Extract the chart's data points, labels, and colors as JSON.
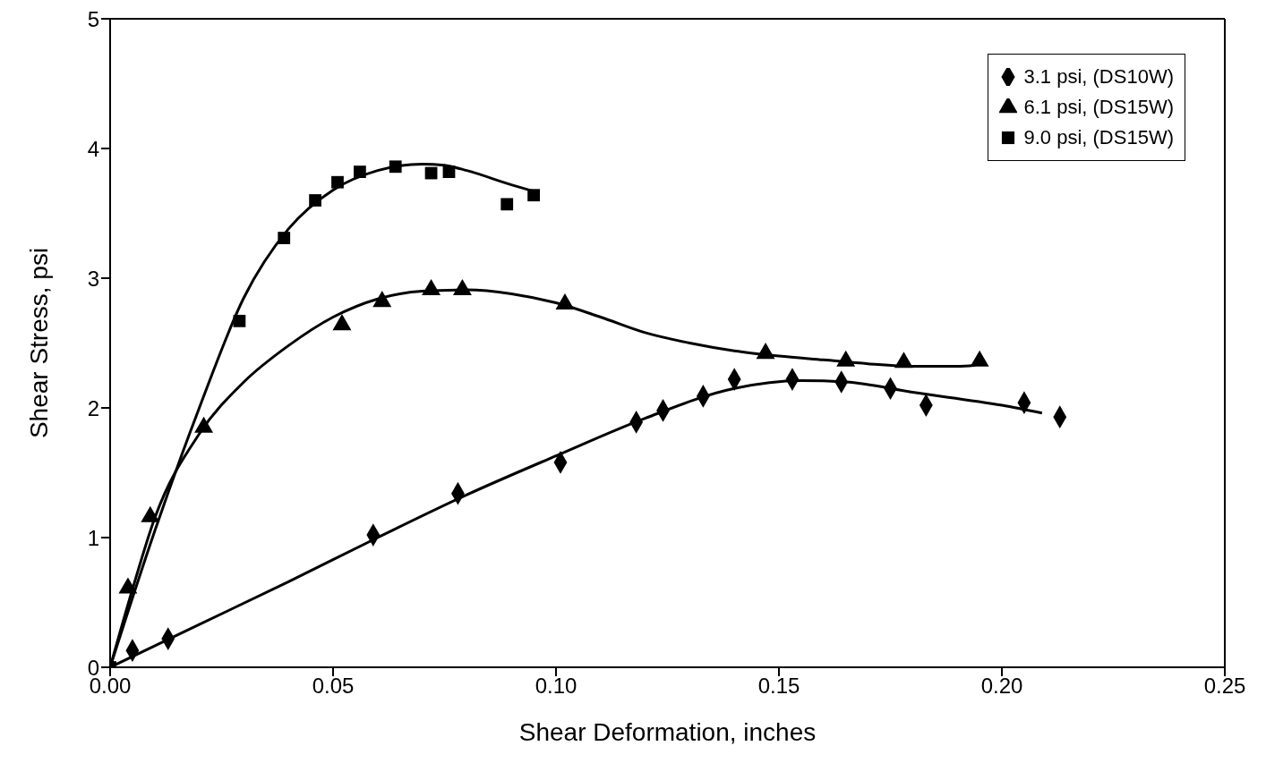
{
  "chart_data": {
    "type": "scatter",
    "xlabel": "Shear Deformation, inches",
    "ylabel": "Shear Stress, psi",
    "xlim": [
      0,
      0.25
    ],
    "xticks": [
      {
        "value": 0,
        "label": "0.00"
      },
      {
        "value": 0.05,
        "label": "0.05"
      },
      {
        "value": 0.1,
        "label": "0.10"
      },
      {
        "value": 0.15,
        "label": "0.15"
      },
      {
        "value": 0.2,
        "label": "0.20"
      },
      {
        "value": 0.25,
        "label": "0.25"
      }
    ],
    "ylim": [
      0,
      5
    ],
    "yticks": [
      0,
      1,
      2,
      3,
      4,
      5
    ],
    "grid": false,
    "legend": "top right",
    "series": [
      {
        "name": "3.1 psi, (DS10W)",
        "marker": "diamond",
        "color": "#000000",
        "x": [
          0.005,
          0.013,
          0.059,
          0.078,
          0.101,
          0.118,
          0.124,
          0.133,
          0.14,
          0.153,
          0.164,
          0.175,
          0.183,
          0.205,
          0.213
        ],
        "values": [
          0.13,
          0.22,
          1.02,
          1.34,
          1.58,
          1.89,
          1.98,
          2.09,
          2.22,
          2.22,
          2.2,
          2.15,
          2.02,
          2.04,
          1.93
        ]
      },
      {
        "name": "6.1 psi, (DS15W)",
        "marker": "triangle",
        "color": "#000000",
        "x": [
          0.004,
          0.009,
          0.021,
          0.052,
          0.061,
          0.072,
          0.079,
          0.102,
          0.147,
          0.165,
          0.178,
          0.195
        ],
        "values": [
          0.61,
          1.16,
          1.85,
          2.64,
          2.82,
          2.91,
          2.91,
          2.8,
          2.42,
          2.36,
          2.35,
          2.36
        ]
      },
      {
        "name": "9.0 psi, (DS15W)",
        "marker": "square",
        "color": "#000000",
        "x": [
          0,
          0.029,
          0.039,
          0.046,
          0.051,
          0.056,
          0.064,
          0.072,
          0.076,
          0.089,
          0.095
        ],
        "values": [
          0,
          2.67,
          3.31,
          3.6,
          3.74,
          3.82,
          3.86,
          3.81,
          3.82,
          3.57,
          3.64
        ]
      },
      {
        "type": "line",
        "marker": "none",
        "line_style": "solid",
        "color": "#000000",
        "x": [
          0,
          0.02,
          0.04,
          0.06,
          0.08,
          0.1,
          0.12,
          0.14,
          0.155,
          0.165,
          0.18,
          0.2,
          0.209
        ],
        "values": [
          0,
          0.33,
          0.66,
          1.0,
          1.33,
          1.63,
          1.92,
          2.15,
          2.21,
          2.2,
          2.12,
          2.02,
          1.96
        ]
      },
      {
        "type": "line",
        "marker": "none",
        "line_style": "solid",
        "color": "#000000",
        "x": [
          0,
          0.005,
          0.01,
          0.02,
          0.03,
          0.04,
          0.05,
          0.06,
          0.07,
          0.08,
          0.09,
          0.1,
          0.11,
          0.12,
          0.13,
          0.14,
          0.15,
          0.16,
          0.17,
          0.18,
          0.19,
          0.194
        ],
        "values": [
          0,
          0.6,
          1.15,
          1.8,
          2.2,
          2.48,
          2.7,
          2.84,
          2.9,
          2.91,
          2.88,
          2.81,
          2.7,
          2.58,
          2.5,
          2.44,
          2.4,
          2.37,
          2.34,
          2.32,
          2.32,
          2.33
        ]
      },
      {
        "type": "line",
        "marker": "none",
        "line_style": "solid",
        "color": "#000000",
        "x": [
          0,
          0.01,
          0.02,
          0.03,
          0.04,
          0.05,
          0.06,
          0.07,
          0.075,
          0.08,
          0.09,
          0.095
        ],
        "values": [
          0,
          1.05,
          2.0,
          2.85,
          3.38,
          3.68,
          3.83,
          3.88,
          3.87,
          3.83,
          3.72,
          3.67
        ]
      }
    ]
  }
}
